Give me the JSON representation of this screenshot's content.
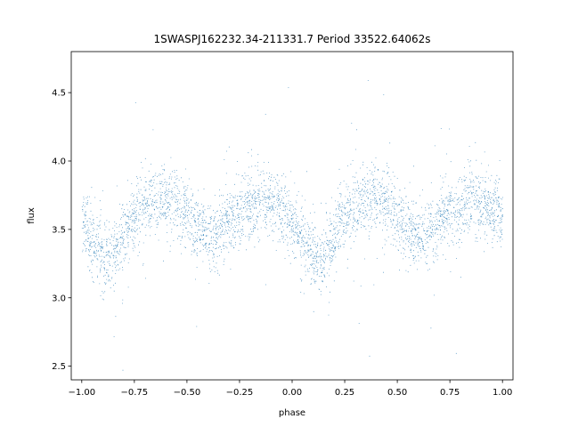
{
  "chart_data": {
    "type": "scatter",
    "title": "1SWASPJ162232.34-211331.7 Period 33522.64062s",
    "xlabel": "phase",
    "ylabel": "flux",
    "xlim": [
      -1.05,
      1.05
    ],
    "ylim": [
      2.4,
      4.8
    ],
    "xticks": [
      -1.0,
      -0.75,
      -0.5,
      -0.25,
      0.0,
      0.25,
      0.5,
      0.75,
      1.0
    ],
    "xtick_labels": [
      "−1.00",
      "−0.75",
      "−0.50",
      "−0.25",
      "0.00",
      "0.25",
      "0.50",
      "0.75",
      "1.00"
    ],
    "yticks": [
      2.5,
      3.0,
      3.5,
      4.0,
      4.5
    ],
    "ytick_labels": [
      "2.5",
      "3.0",
      "3.5",
      "4.0",
      "4.5"
    ],
    "grid": false,
    "marker_color": "#1f77b4",
    "series": [
      {
        "phase_curve": {
          "x": [
            0.0,
            0.05,
            0.1,
            0.125,
            0.15,
            0.2,
            0.25,
            0.3,
            0.35,
            0.4,
            0.45,
            0.5,
            0.55,
            0.6,
            0.65,
            0.7,
            0.75,
            0.8,
            0.85,
            0.9,
            0.95,
            1.0
          ],
          "y": [
            3.58,
            3.4,
            3.3,
            3.25,
            3.3,
            3.45,
            3.6,
            3.68,
            3.72,
            3.73,
            3.7,
            3.6,
            3.5,
            3.45,
            3.47,
            3.55,
            3.63,
            3.68,
            3.7,
            3.68,
            3.64,
            3.58
          ]
        },
        "scatter_sigma": 0.12,
        "points_per_unit_phase": 15000
      }
    ]
  }
}
